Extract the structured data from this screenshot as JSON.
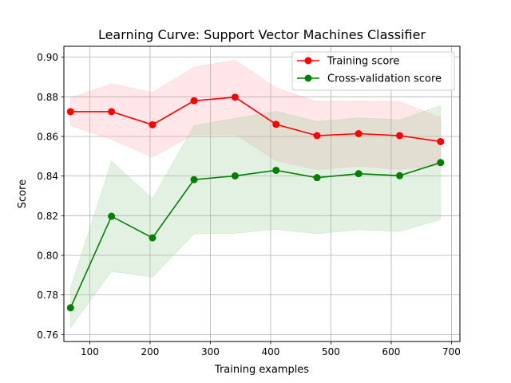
{
  "chart_data": {
    "type": "line",
    "title": "Learning Curve: Support Vector Machines Classifier",
    "xlabel": "Training examples",
    "ylabel": "Score",
    "xlim": [
      57,
      714
    ],
    "ylim": [
      0.7565,
      0.9055
    ],
    "x_ticks": [
      100,
      200,
      300,
      400,
      500,
      600,
      700
    ],
    "x_tick_labels": [
      "100",
      "200",
      "300",
      "400",
      "500",
      "600",
      "700"
    ],
    "y_ticks": [
      0.76,
      0.78,
      0.8,
      0.82,
      0.84,
      0.86,
      0.88,
      0.9
    ],
    "y_tick_labels": [
      "0.76",
      "0.78",
      "0.80",
      "0.82",
      "0.84",
      "0.86",
      "0.88",
      "0.90"
    ],
    "grid": true,
    "legend_position": "top-right",
    "x": [
      68,
      136,
      204,
      273,
      341,
      409,
      477,
      546,
      614,
      682
    ],
    "series": [
      {
        "name": "Training score",
        "color": "#ff0000",
        "band_color": "#ff9aa2",
        "values": [
          0.8725,
          0.8725,
          0.8659,
          0.878,
          0.8798,
          0.8661,
          0.8604,
          0.8614,
          0.8604,
          0.8574
        ],
        "band_upper": [
          0.8795,
          0.8865,
          0.8822,
          0.895,
          0.8985,
          0.8845,
          0.8775,
          0.8778,
          0.8775,
          0.8695
        ],
        "band_lower": [
          0.8655,
          0.8585,
          0.8496,
          0.861,
          0.8611,
          0.8477,
          0.8433,
          0.845,
          0.8433,
          0.8453
        ]
      },
      {
        "name": "Cross-validation score",
        "color": "#008000",
        "band_color": "#8fc98f",
        "values": [
          0.7735,
          0.8197,
          0.8088,
          0.8382,
          0.8401,
          0.8429,
          0.8392,
          0.8412,
          0.8402,
          0.8468
        ],
        "band_upper": [
          0.7835,
          0.8475,
          0.8286,
          0.8655,
          0.8691,
          0.8727,
          0.8675,
          0.8694,
          0.8684,
          0.8755
        ],
        "band_lower": [
          0.7635,
          0.7919,
          0.789,
          0.8109,
          0.8111,
          0.8131,
          0.8109,
          0.813,
          0.812,
          0.8181
        ]
      }
    ]
  }
}
